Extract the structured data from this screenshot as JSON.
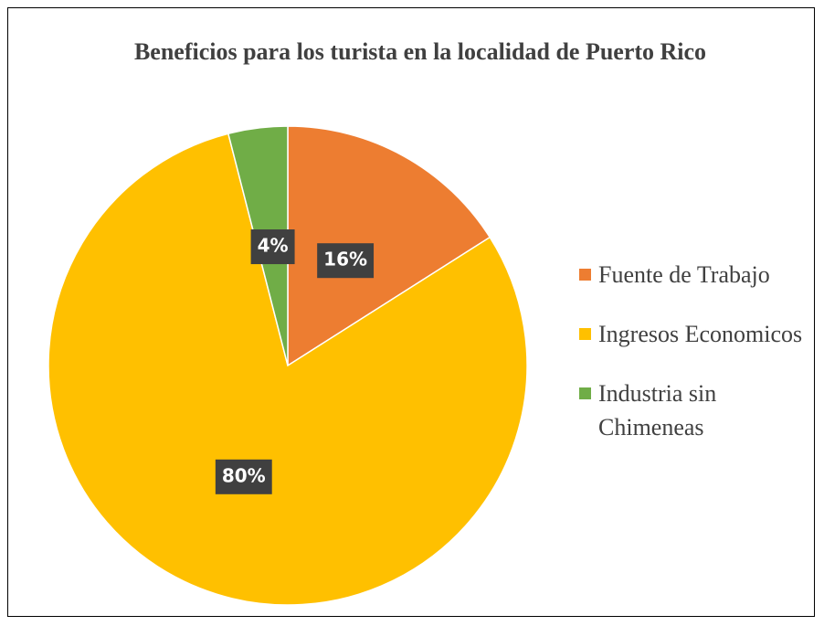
{
  "chart_data": {
    "type": "pie",
    "title": "Beneficios para los turista en la localidad de Puerto Rico",
    "categories": [
      "Fuente de Trabajo",
      "Ingresos Economicos",
      "Industria sin Chimeneas"
    ],
    "values": [
      16,
      80,
      4
    ],
    "value_labels": [
      "16%",
      "80%",
      "4%"
    ],
    "colors": [
      "#ed7d31",
      "#ffc000",
      "#70ad47"
    ],
    "legend": "right"
  }
}
